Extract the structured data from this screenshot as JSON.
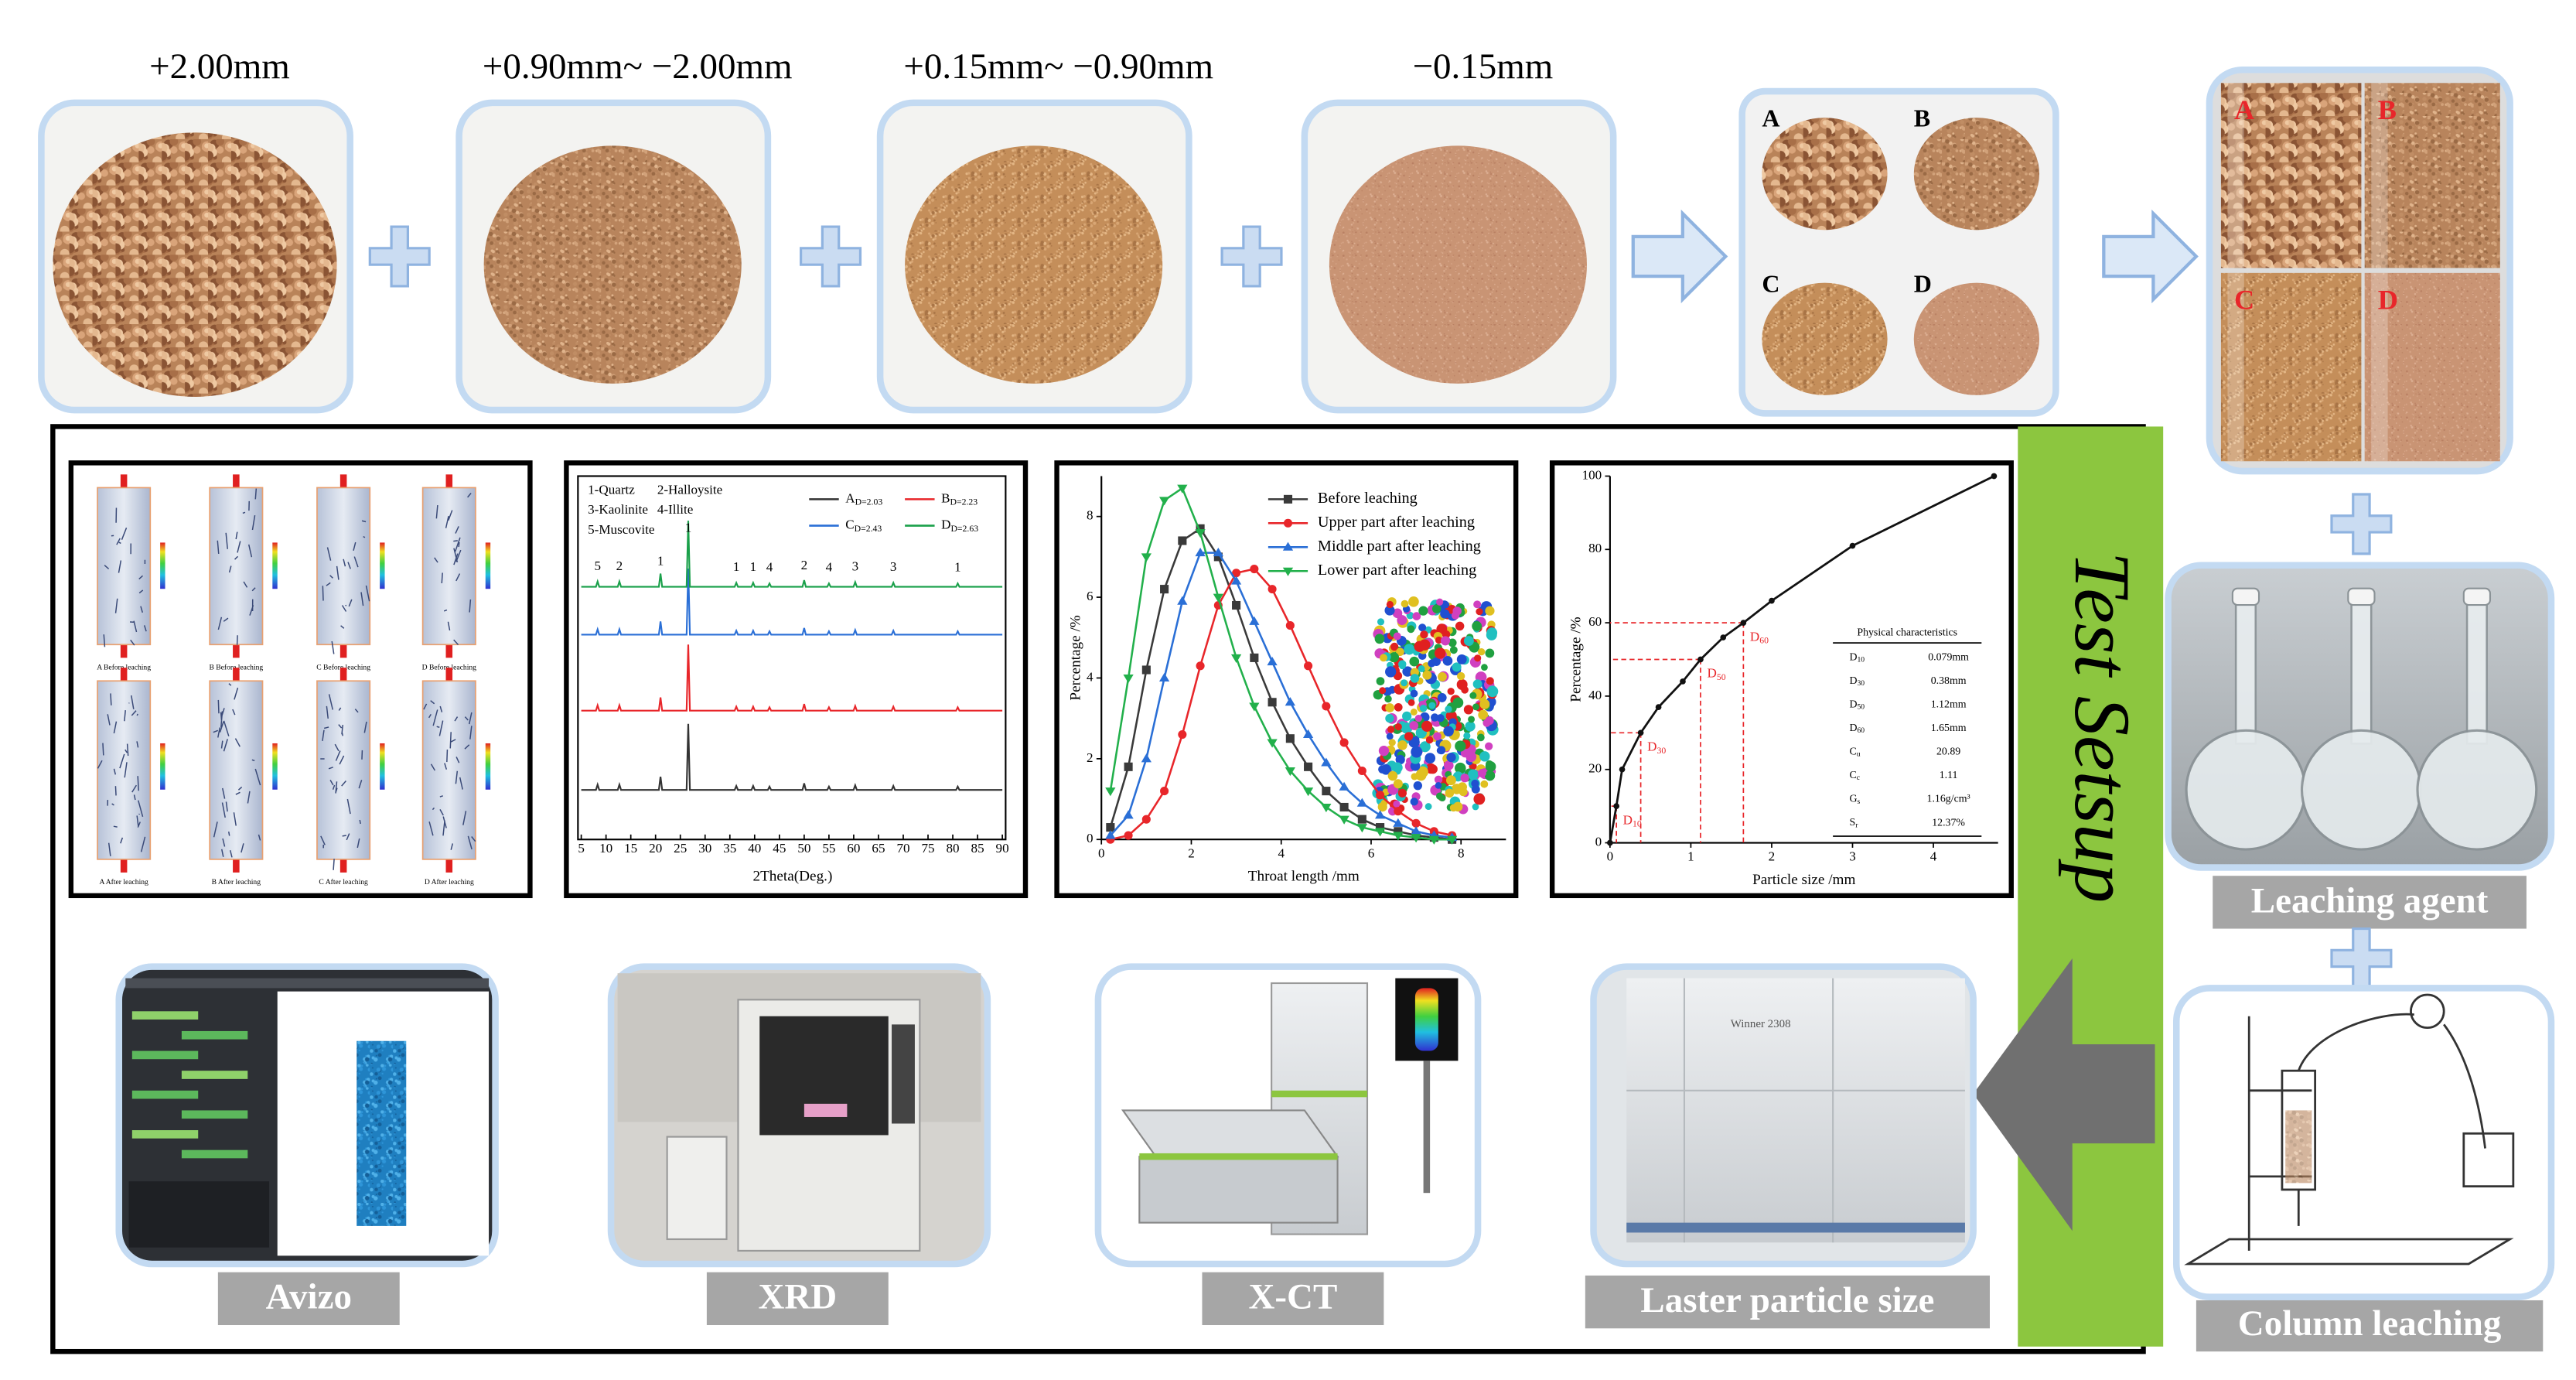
{
  "fractions": [
    "+2.00mm",
    "+0.90mm~ −2.00mm",
    "+0.15mm~ −0.90mm",
    "−0.15mm"
  ],
  "mix_labels": [
    "A",
    "B",
    "C",
    "D"
  ],
  "column_labels": [
    "A",
    "B",
    "C",
    "D"
  ],
  "section_title": "Test Setsup",
  "leaching_agent": "Leaching agent",
  "column_leaching": "Column leaching",
  "instruments": [
    "Avizo",
    "XRD",
    "X-CT",
    "Laster particle size"
  ],
  "laser_device_text": "Winner 2308",
  "pore_panel": {
    "captions": [
      "A Before leaching",
      "B Before leaching",
      "C Before leaching",
      "D Before leaching",
      "A After leaching",
      "B After leaching",
      "C After leaching",
      "D After leaching"
    ]
  },
  "xrd_panel": {
    "type": "line",
    "minerals": [
      "1-Quartz",
      "2-Halloysite",
      "3-Kaolinite",
      "4-Illite",
      "5-Muscovite"
    ],
    "series": [
      {
        "name": "A",
        "sub": "D=2.03",
        "color": "#333333"
      },
      {
        "name": "B",
        "sub": "D=2.23",
        "color": "#e8262a"
      },
      {
        "name": "C",
        "sub": "D=2.43",
        "color": "#2a6fd6"
      },
      {
        "name": "D",
        "sub": "D=2.63",
        "color": "#1aa04a"
      }
    ],
    "peaks": [
      {
        "x": 8.3,
        "label": "5",
        "intensity": 8
      },
      {
        "x": 12.7,
        "label": "2",
        "intensity": 8
      },
      {
        "x": 21,
        "label": "1",
        "intensity": 20
      },
      {
        "x": 26.6,
        "label": "1",
        "intensity": 100
      },
      {
        "x": 36.3,
        "label": "1",
        "intensity": 6
      },
      {
        "x": 39.7,
        "label": "1",
        "intensity": 6
      },
      {
        "x": 43,
        "label": "4",
        "intensity": 5
      },
      {
        "x": 50,
        "label": "2",
        "intensity": 10
      },
      {
        "x": 55,
        "label": "4",
        "intensity": 5
      },
      {
        "x": 60.3,
        "label": "3",
        "intensity": 7
      },
      {
        "x": 68,
        "label": "3",
        "intensity": 6
      },
      {
        "x": 81,
        "label": "1",
        "intensity": 5
      }
    ],
    "xlim": [
      5,
      90
    ],
    "xticks": [
      5,
      10,
      15,
      20,
      25,
      30,
      35,
      40,
      45,
      50,
      55,
      60,
      65,
      70,
      75,
      80,
      85,
      90
    ],
    "x_label": "2Theta(Deg.)"
  },
  "throat_panel": {
    "type": "line",
    "x": [
      0.2,
      0.6,
      1.0,
      1.4,
      1.8,
      2.2,
      2.6,
      3.0,
      3.4,
      3.8,
      4.2,
      4.6,
      5.0,
      5.4,
      5.8,
      6.2,
      6.6,
      7.0,
      7.4,
      7.8
    ],
    "series": [
      {
        "name": "Before leaching",
        "color": "#3a3a3a",
        "marker": "square",
        "values": [
          0.3,
          1.8,
          4.2,
          6.2,
          7.4,
          7.7,
          7.0,
          5.8,
          4.5,
          3.4,
          2.5,
          1.8,
          1.2,
          0.8,
          0.5,
          0.3,
          0.2,
          0.1,
          0.05,
          0
        ]
      },
      {
        "name": "Upper part after leaching",
        "color": "#e8262a",
        "marker": "circle",
        "values": [
          0,
          0.1,
          0.5,
          1.2,
          2.6,
          4.3,
          5.8,
          6.6,
          6.7,
          6.2,
          5.3,
          4.3,
          3.3,
          2.4,
          1.7,
          1.1,
          0.7,
          0.4,
          0.2,
          0.1
        ]
      },
      {
        "name": "Middle part after leaching",
        "color": "#2a6fd6",
        "marker": "triangle-up",
        "values": [
          0.1,
          0.6,
          2.0,
          4.0,
          5.9,
          7.1,
          7.1,
          6.4,
          5.4,
          4.4,
          3.4,
          2.6,
          1.9,
          1.3,
          0.9,
          0.6,
          0.4,
          0.2,
          0.1,
          0.05
        ]
      },
      {
        "name": "Lower part after leaching",
        "color": "#22b04b",
        "marker": "triangle-down",
        "values": [
          1.2,
          4.0,
          7.0,
          8.4,
          8.7,
          7.6,
          6.0,
          4.5,
          3.3,
          2.4,
          1.7,
          1.2,
          0.8,
          0.5,
          0.3,
          0.2,
          0.1,
          0.05,
          0,
          0
        ]
      }
    ],
    "xlim": [
      0,
      9
    ],
    "xticks": [
      0,
      2,
      4,
      6,
      8
    ],
    "ylim": [
      0,
      9
    ],
    "yticks": [
      0,
      2,
      4,
      6,
      8
    ],
    "x_label": "Throat length /mm",
    "y_label": "Percentage /%"
  },
  "psd_panel": {
    "type": "line",
    "x": [
      0,
      0.079,
      0.15,
      0.38,
      0.6,
      0.9,
      1.12,
      1.4,
      1.65,
      2,
      3,
      4.75
    ],
    "values": [
      0,
      10,
      20,
      30,
      37,
      44,
      50,
      56,
      60,
      66,
      81,
      100
    ],
    "color": "#111111",
    "xlim": [
      0,
      4.8
    ],
    "xticks": [
      0,
      1,
      2,
      3,
      4
    ],
    "ylim": [
      0,
      100
    ],
    "yticks": [
      0,
      20,
      40,
      60,
      80,
      100
    ],
    "x_label": "Particle size /mm",
    "y_label": "Percentage /%",
    "markers": [
      {
        "base": "D",
        "sub": "10",
        "x": 0.079,
        "y": 10
      },
      {
        "base": "D",
        "sub": "30",
        "x": 0.38,
        "y": 30
      },
      {
        "base": "D",
        "sub": "50",
        "x": 1.12,
        "y": 50
      },
      {
        "base": "D",
        "sub": "60",
        "x": 1.65,
        "y": 60
      }
    ],
    "table": {
      "title": "Physical characteristics",
      "rows": [
        {
          "base": "D",
          "sub": "10",
          "value": "0.079mm"
        },
        {
          "base": "D",
          "sub": "30",
          "value": "0.38mm"
        },
        {
          "base": "D",
          "sub": "50",
          "value": "1.12mm"
        },
        {
          "base": "D",
          "sub": "60",
          "value": "1.65mm"
        },
        {
          "base": "C",
          "sub": "u",
          "value": "20.89"
        },
        {
          "base": "C",
          "sub": "c",
          "value": "1.11"
        },
        {
          "base": "G",
          "sub": "s",
          "value": "1.16g/cm³"
        },
        {
          "base": "S",
          "sub": "r",
          "value": "12.37%"
        }
      ]
    }
  }
}
